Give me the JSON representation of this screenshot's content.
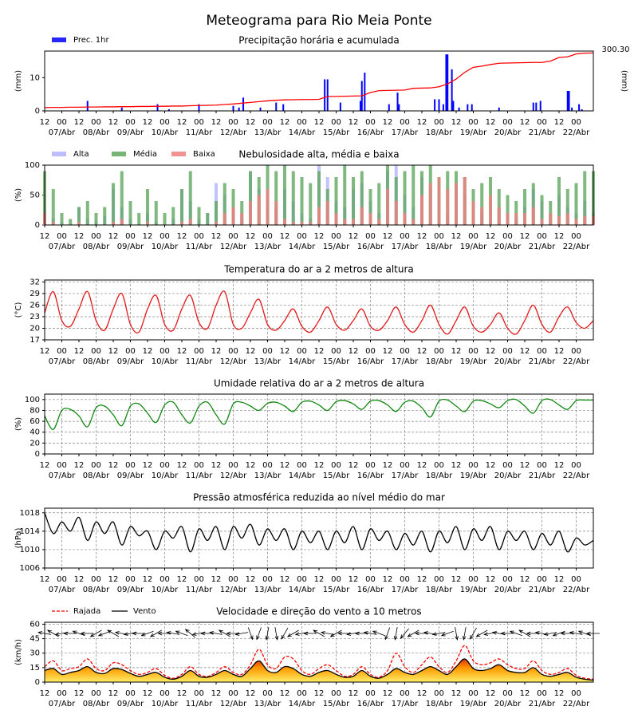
{
  "title": "Meteograma para Rio Meia Ponte",
  "x_axis": {
    "xlim": [
      0,
      384
    ],
    "x": [
      0,
      6,
      12,
      18,
      24,
      30,
      36,
      42,
      48,
      54,
      60,
      66,
      72,
      78,
      84,
      90,
      96,
      102,
      108,
      114,
      120,
      126,
      132,
      138,
      144,
      150,
      156,
      162,
      168,
      174,
      180,
      186,
      192,
      198,
      204,
      210,
      216,
      222,
      228,
      234,
      240,
      246,
      252,
      258,
      264,
      270,
      276,
      282,
      288,
      294,
      300,
      306,
      312,
      318,
      324,
      330,
      336,
      342,
      348,
      354,
      360,
      366,
      372,
      378,
      384
    ],
    "xticks": [
      {
        "value": 0,
        "label": "12"
      },
      {
        "value": 12,
        "label": "00"
      },
      {
        "value": 24,
        "label": "12"
      },
      {
        "value": 36,
        "label": "00"
      },
      {
        "value": 48,
        "label": "12"
      },
      {
        "value": 60,
        "label": "00"
      },
      {
        "value": 72,
        "label": "12"
      },
      {
        "value": 84,
        "label": "00"
      },
      {
        "value": 96,
        "label": "12"
      },
      {
        "value": 108,
        "label": "00"
      },
      {
        "value": 120,
        "label": "12"
      },
      {
        "value": 132,
        "label": "00"
      },
      {
        "value": 144,
        "label": "12"
      },
      {
        "value": 156,
        "label": "00"
      },
      {
        "value": 168,
        "label": "12"
      },
      {
        "value": 180,
        "label": "00"
      },
      {
        "value": 192,
        "label": "12"
      },
      {
        "value": 204,
        "label": "00"
      },
      {
        "value": 216,
        "label": "12"
      },
      {
        "value": 228,
        "label": "00"
      },
      {
        "value": 240,
        "label": "12"
      },
      {
        "value": 252,
        "label": "00"
      },
      {
        "value": 264,
        "label": "12"
      },
      {
        "value": 276,
        "label": "00"
      },
      {
        "value": 288,
        "label": "12"
      },
      {
        "value": 300,
        "label": "00"
      },
      {
        "value": 312,
        "label": "12"
      },
      {
        "value": 324,
        "label": "00"
      },
      {
        "value": 336,
        "label": "12"
      },
      {
        "value": 348,
        "label": "00"
      },
      {
        "value": 360,
        "label": "12"
      },
      {
        "value": 372,
        "label": "00"
      }
    ],
    "date_labels": [
      {
        "value": 12,
        "label": "07/Abr"
      },
      {
        "value": 36,
        "label": "08/Abr"
      },
      {
        "value": 60,
        "label": "09/Abr"
      },
      {
        "value": 84,
        "label": "10/Abr"
      },
      {
        "value": 108,
        "label": "11/Abr"
      },
      {
        "value": 132,
        "label": "12/Abr"
      },
      {
        "value": 156,
        "label": "13/Abr"
      },
      {
        "value": 180,
        "label": "14/Abr"
      },
      {
        "value": 204,
        "label": "15/Abr"
      },
      {
        "value": 228,
        "label": "16/Abr"
      },
      {
        "value": 252,
        "label": "17/Abr"
      },
      {
        "value": 276,
        "label": "18/Abr"
      },
      {
        "value": 300,
        "label": "19/Abr"
      },
      {
        "value": 324,
        "label": "20/Abr"
      },
      {
        "value": 348,
        "label": "21/Abr"
      },
      {
        "value": 372,
        "label": "22/Abr"
      }
    ]
  },
  "chart_data": [
    {
      "type": "bar",
      "title": "Precipitação horária e acumulada",
      "ylabel": "(mm)",
      "y2label": "(mm)",
      "ylim": [
        0,
        18
      ],
      "yticks": [
        0,
        10
      ],
      "y2lim": [
        0,
        310
      ],
      "grid": false,
      "legend": "top-left",
      "series": [
        {
          "name": "Prec. 1hr",
          "color": "#0000ff",
          "x": [
            30,
            54,
            79,
            87,
            108,
            132,
            136,
            139,
            151,
            162,
            167,
            196,
            198,
            207,
            221,
            222,
            224,
            241,
            247,
            248,
            273,
            276,
            279,
            281,
            282,
            285,
            286,
            290,
            296,
            299,
            318,
            342,
            344,
            347,
            366,
            367,
            369,
            374,
            376
          ],
          "values": [
            3,
            1,
            2,
            0.5,
            2,
            1.5,
            1,
            4,
            1,
            2.5,
            2,
            9.5,
            9.5,
            2.5,
            3,
            9,
            11.5,
            2,
            5.5,
            2,
            3.5,
            3.5,
            2,
            17,
            17,
            12.5,
            3,
            1,
            2,
            2,
            1,
            2.5,
            2.5,
            3,
            6,
            6,
            1,
            2,
            0.5
          ]
        },
        {
          "axis": "y2",
          "color": "#ff0000",
          "end_label": "300.30",
          "values": [
            17,
            18,
            18,
            19,
            19,
            20,
            20,
            21,
            21,
            22,
            22,
            23,
            23,
            24,
            24,
            25,
            25,
            27,
            28,
            29,
            30,
            33,
            36,
            40,
            44,
            48,
            52,
            55,
            57,
            58,
            59,
            59,
            60,
            75,
            75,
            76,
            77,
            78,
            95,
            105,
            106,
            107,
            108,
            117,
            118,
            119,
            125,
            140,
            165,
            200,
            226,
            232,
            240,
            247,
            248,
            249,
            250,
            251,
            251,
            258,
            277,
            280,
            295,
            299,
            300.3
          ]
        }
      ]
    },
    {
      "type": "bar",
      "title": "Nebulosidade alta, média e baixa",
      "ylabel": "(%)",
      "ylim": [
        0,
        100
      ],
      "yticks": [
        0,
        50,
        100
      ],
      "grid": false,
      "legend": "top-left",
      "series": [
        {
          "name": "Alta",
          "color": "#b3b3ff",
          "values": [
            20,
            10,
            5,
            0,
            30,
            10,
            5,
            15,
            60,
            30,
            10,
            0,
            20,
            5,
            0,
            10,
            60,
            40,
            10,
            20,
            70,
            50,
            30,
            10,
            90,
            60,
            40,
            30,
            60,
            40,
            20,
            10,
            100,
            80,
            40,
            30,
            60,
            70,
            40,
            20,
            90,
            100,
            50,
            30,
            80,
            60,
            40,
            20,
            70,
            50,
            30,
            20,
            40,
            30,
            20,
            10,
            30,
            60,
            40,
            20,
            50,
            30,
            20,
            40,
            20
          ]
        },
        {
          "name": "Média",
          "color": "#5fa85f",
          "values": [
            90,
            60,
            20,
            10,
            30,
            40,
            20,
            30,
            70,
            90,
            40,
            20,
            60,
            40,
            20,
            30,
            60,
            90,
            30,
            20,
            40,
            70,
            60,
            40,
            90,
            80,
            100,
            90,
            100,
            90,
            80,
            70,
            90,
            60,
            80,
            100,
            80,
            90,
            60,
            70,
            100,
            80,
            90,
            100,
            90,
            100,
            80,
            90,
            90,
            80,
            60,
            70,
            80,
            60,
            50,
            40,
            60,
            70,
            50,
            40,
            80,
            60,
            70,
            90,
            90
          ]
        },
        {
          "name": "Baixa",
          "color": "#f08080",
          "values": [
            20,
            5,
            0,
            0,
            5,
            0,
            0,
            0,
            5,
            10,
            0,
            0,
            5,
            0,
            0,
            0,
            5,
            10,
            0,
            0,
            5,
            20,
            30,
            20,
            40,
            50,
            60,
            40,
            10,
            5,
            5,
            5,
            30,
            40,
            20,
            10,
            10,
            30,
            20,
            10,
            60,
            40,
            20,
            10,
            50,
            70,
            80,
            60,
            70,
            80,
            40,
            30,
            50,
            30,
            20,
            20,
            20,
            30,
            10,
            20,
            15,
            20,
            10,
            15,
            15
          ]
        }
      ]
    },
    {
      "type": "line",
      "title": "Temperatura do ar a 2 metros de altura",
      "ylabel": "(°C)",
      "ylim": [
        17,
        32.5
      ],
      "yticks": [
        17,
        20,
        23,
        26,
        29,
        32
      ],
      "grid": true,
      "series": [
        {
          "color": "#e31a1c",
          "values": [
            24,
            29.5,
            22,
            20.5,
            25,
            29.5,
            22,
            19.5,
            25,
            29,
            21,
            19,
            25,
            28.5,
            21,
            19.5,
            25,
            28.5,
            21.5,
            20,
            26,
            29.5,
            21,
            20,
            24,
            27.5,
            21,
            19.5,
            22,
            25,
            20.5,
            19,
            22,
            25.5,
            21,
            19.5,
            22,
            25,
            20.5,
            19.5,
            22,
            25.5,
            21,
            19,
            22,
            26,
            21,
            18.5,
            22,
            25.5,
            20.5,
            19,
            21,
            24,
            20,
            18.5,
            22,
            26,
            21,
            19,
            23,
            25.5,
            21.5,
            20,
            22
          ]
        }
      ]
    },
    {
      "type": "line",
      "title": "Umidade relativa do ar a 2 metros de altura",
      "ylabel": "(%)",
      "ylim": [
        0,
        110
      ],
      "yticks": [
        0,
        20,
        40,
        60,
        80,
        100
      ],
      "grid": true,
      "series": [
        {
          "color": "#118811",
          "values": [
            70,
            45,
            80,
            82,
            70,
            50,
            85,
            88,
            72,
            52,
            88,
            92,
            75,
            58,
            90,
            95,
            72,
            57,
            88,
            95,
            72,
            55,
            92,
            95,
            88,
            80,
            93,
            95,
            88,
            78,
            95,
            97,
            90,
            80,
            96,
            98,
            92,
            82,
            97,
            98,
            90,
            78,
            95,
            97,
            85,
            68,
            97,
            99,
            88,
            78,
            97,
            98,
            92,
            85,
            98,
            100,
            88,
            75,
            98,
            100,
            90,
            82,
            98,
            99,
            99
          ]
        }
      ]
    },
    {
      "type": "line",
      "title": "Pressão atmosférica reduzida ao nível médio do mar",
      "ylabel": "(hPa)",
      "ylim": [
        1006,
        1019
      ],
      "yticks": [
        1006,
        1010,
        1014,
        1018
      ],
      "grid": true,
      "series": [
        {
          "color": "#000000",
          "values": [
            1018,
            1013.5,
            1016,
            1014,
            1017,
            1012,
            1016,
            1013.5,
            1016,
            1011,
            1015,
            1013,
            1014,
            1010,
            1014,
            1012.5,
            1015,
            1009.5,
            1014.5,
            1012,
            1015,
            1010,
            1015,
            1012.5,
            1015.5,
            1011,
            1014.5,
            1012,
            1014.5,
            1010,
            1014,
            1011.5,
            1014,
            1010,
            1014,
            1011.5,
            1015,
            1010,
            1014.5,
            1012,
            1014,
            1010,
            1013.5,
            1011,
            1014,
            1009.5,
            1014,
            1011.5,
            1015,
            1010,
            1014.5,
            1012,
            1015,
            1010,
            1014,
            1012,
            1014,
            1010,
            1013.5,
            1011,
            1014,
            1009.5,
            1012.5,
            1011,
            1012
          ]
        }
      ]
    },
    {
      "type": "line",
      "title": "Velocidade e direção do vento a 10 metros",
      "ylabel": "(km/h)",
      "ylim": [
        0,
        62
      ],
      "yticks": [
        0,
        15,
        30,
        45,
        60
      ],
      "grid": true,
      "legend": "top-left",
      "series": [
        {
          "name": "Rajada",
          "color": "#ff0000",
          "dash": true,
          "values": [
            16,
            22,
            12,
            14,
            16,
            24,
            14,
            12,
            20,
            18,
            12,
            8,
            10,
            14,
            7,
            4,
            8,
            16,
            8,
            6,
            10,
            16,
            10,
            8,
            18,
            34,
            18,
            14,
            26,
            24,
            12,
            8,
            14,
            18,
            12,
            6,
            8,
            16,
            8,
            5,
            12,
            30,
            16,
            10,
            18,
            26,
            16,
            10,
            22,
            38,
            22,
            18,
            20,
            24,
            18,
            14,
            14,
            22,
            12,
            8,
            10,
            14,
            7,
            4,
            3
          ]
        },
        {
          "name": "Vento",
          "color": "#000000",
          "area": true,
          "values": [
            12,
            14,
            8,
            10,
            12,
            16,
            10,
            9,
            14,
            13,
            9,
            6,
            8,
            10,
            5,
            3,
            6,
            12,
            6,
            5,
            8,
            12,
            8,
            6,
            14,
            22,
            12,
            10,
            16,
            14,
            8,
            6,
            10,
            12,
            8,
            5,
            6,
            12,
            6,
            4,
            8,
            14,
            10,
            8,
            12,
            16,
            12,
            8,
            16,
            24,
            14,
            12,
            14,
            18,
            12,
            10,
            10,
            15,
            8,
            6,
            8,
            10,
            5,
            3,
            2
          ],
          "direction": [
            100,
            120,
            80,
            90,
            110,
            90,
            60,
            70,
            120,
            100,
            80,
            90,
            70,
            60,
            90,
            100,
            110,
            130,
            80,
            90,
            100,
            120,
            90,
            80,
            340,
            20,
            10,
            350,
            30,
            60,
            80,
            90,
            120,
            100,
            60,
            90,
            80,
            90,
            100,
            110,
            20,
            10,
            40,
            60,
            90,
            100,
            80,
            70,
            350,
            10,
            30,
            60,
            80,
            100,
            90,
            110,
            120,
            90,
            100,
            80,
            70,
            90,
            100,
            110,
            90
          ]
        }
      ]
    }
  ]
}
